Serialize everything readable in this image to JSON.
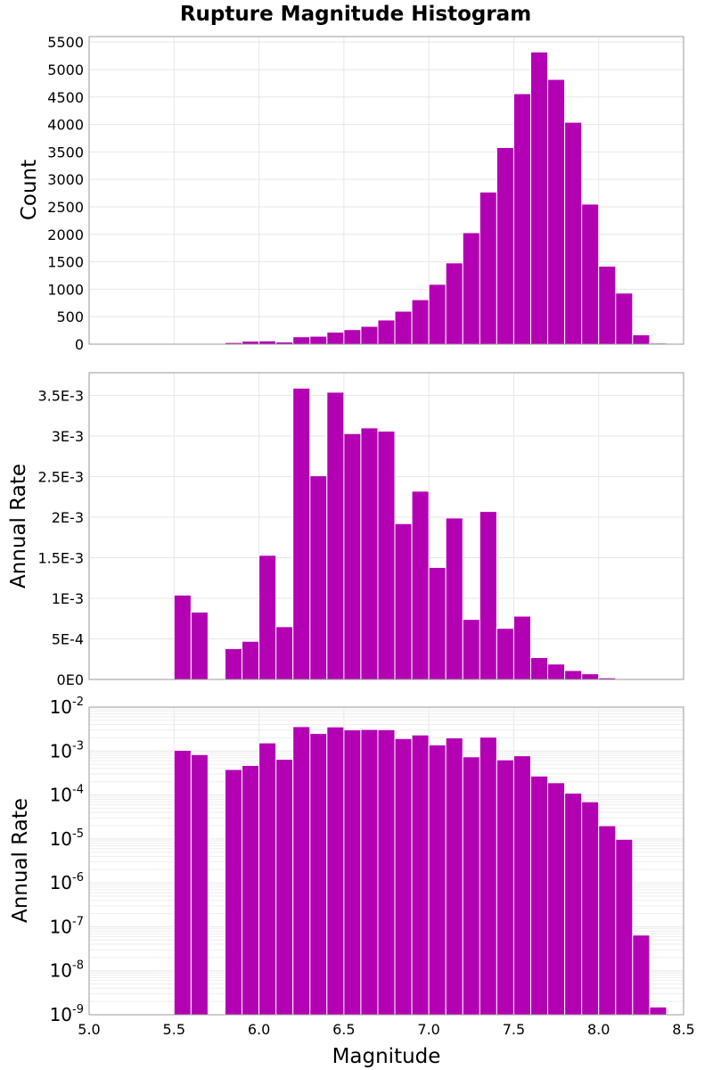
{
  "title": "Rupture Magnitude Histogram",
  "bar_color": "#b300b3",
  "chart_data": [
    {
      "type": "bar",
      "panel": "count",
      "ylabel": "Count",
      "xlabel": "",
      "xlim": [
        5.0,
        8.5
      ],
      "ylim": [
        0,
        5600
      ],
      "yticks": [
        0,
        500,
        1000,
        1500,
        2000,
        2500,
        3000,
        3500,
        4000,
        4500,
        5000,
        5500
      ],
      "ytick_labels": [
        "0",
        "500",
        "1000",
        "1500",
        "2000",
        "2500",
        "3000",
        "3500",
        "4000",
        "4500",
        "5000",
        "5500"
      ],
      "bin_width": 0.1,
      "bin_centers": [
        5.55,
        5.65,
        5.85,
        5.95,
        6.05,
        6.15,
        6.25,
        6.35,
        6.45,
        6.55,
        6.65,
        6.75,
        6.85,
        6.95,
        7.05,
        7.15,
        7.25,
        7.35,
        7.45,
        7.55,
        7.65,
        7.75,
        7.85,
        7.95,
        8.05,
        8.15,
        8.25,
        8.35
      ],
      "values": [
        5,
        8,
        30,
        55,
        60,
        40,
        135,
        145,
        220,
        265,
        325,
        440,
        600,
        810,
        1090,
        1480,
        2030,
        2770,
        3580,
        4560,
        5320,
        4820,
        4040,
        2550,
        1420,
        930,
        170,
        20
      ]
    },
    {
      "type": "bar",
      "panel": "rate-linear",
      "ylabel": "Annual Rate",
      "xlabel": "",
      "xlim": [
        5.0,
        8.5
      ],
      "ylim": [
        0,
        0.00378
      ],
      "yticks": [
        0,
        0.0005,
        0.001,
        0.0015,
        0.002,
        0.0025,
        0.003,
        0.0035
      ],
      "ytick_labels": [
        "0E0",
        "5E-4",
        "1E-3",
        "1.5E-3",
        "2E-3",
        "2.5E-3",
        "3E-3",
        "3.5E-3"
      ],
      "bin_width": 0.1,
      "bin_centers": [
        5.55,
        5.65,
        5.85,
        5.95,
        6.05,
        6.15,
        6.25,
        6.35,
        6.45,
        6.55,
        6.65,
        6.75,
        6.85,
        6.95,
        7.05,
        7.15,
        7.25,
        7.35,
        7.45,
        7.55,
        7.65,
        7.75,
        7.85,
        7.95,
        8.05,
        8.15,
        8.25,
        8.35
      ],
      "values": [
        0.00104,
        0.00083,
        0.00038,
        0.00047,
        0.00153,
        0.00065,
        0.00359,
        0.00251,
        0.00354,
        0.00303,
        0.0031,
        0.00306,
        0.00192,
        0.00232,
        0.00138,
        0.00199,
        0.00074,
        0.00207,
        0.00063,
        0.00078,
        0.00027,
        0.00019,
        0.00011,
        7e-05,
        2e-05,
        9.8e-06,
        6.5e-08,
        1.5e-09
      ]
    },
    {
      "type": "bar",
      "panel": "rate-log",
      "ylabel": "Annual Rate",
      "xlabel": "Magnitude",
      "scale": "log",
      "xlim": [
        5.0,
        8.5
      ],
      "xticks": [
        5.0,
        5.5,
        6.0,
        6.5,
        7.0,
        7.5,
        8.0,
        8.5
      ],
      "xtick_labels": [
        "5.0",
        "5.5",
        "6.0",
        "6.5",
        "7.0",
        "7.5",
        "8.0",
        "8.5"
      ],
      "ylim_log10": [
        -9,
        -2
      ],
      "ytick_exponents": [
        -9,
        -8,
        -7,
        -6,
        -5,
        -4,
        -3,
        -2
      ],
      "ytick_base": "10",
      "ytick_exponent_labels": [
        "-9",
        "-8",
        "-7",
        "-6",
        "-5",
        "-4",
        "-3",
        "-2"
      ],
      "bin_width": 0.1,
      "bin_centers": [
        5.55,
        5.65,
        5.85,
        5.95,
        6.05,
        6.15,
        6.25,
        6.35,
        6.45,
        6.55,
        6.65,
        6.75,
        6.85,
        6.95,
        7.05,
        7.15,
        7.25,
        7.35,
        7.45,
        7.55,
        7.65,
        7.75,
        7.85,
        7.95,
        8.05,
        8.15,
        8.25,
        8.35
      ],
      "values": [
        0.00104,
        0.00083,
        0.00038,
        0.00047,
        0.00153,
        0.00065,
        0.00359,
        0.00251,
        0.00354,
        0.00303,
        0.0031,
        0.00306,
        0.00192,
        0.00232,
        0.00138,
        0.00199,
        0.00074,
        0.00207,
        0.00063,
        0.00078,
        0.00027,
        0.00019,
        0.00011,
        7e-05,
        2e-05,
        9.8e-06,
        6.5e-08,
        1.5e-09
      ]
    }
  ]
}
